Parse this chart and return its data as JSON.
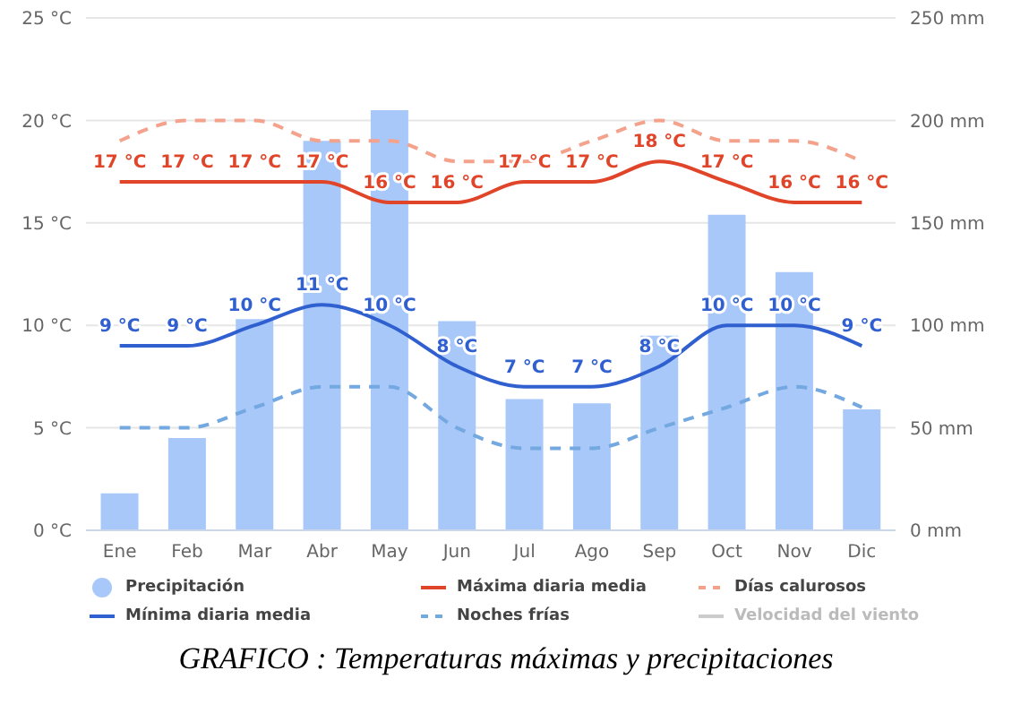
{
  "chart_data": {
    "type": "bar",
    "title": "GRAFICO : Temperaturas máximas y precipitaciones",
    "categories": [
      "Ene",
      "Feb",
      "Mar",
      "Abr",
      "May",
      "Jun",
      "Jul",
      "Ago",
      "Sep",
      "Oct",
      "Nov",
      "Dic"
    ],
    "series": [
      {
        "name": "Precipitación",
        "axis": "y2",
        "color": "#a8c8fa",
        "values": [
          18,
          45,
          103,
          190,
          205,
          102,
          64,
          62,
          95,
          154,
          126,
          59
        ]
      },
      {
        "name": "Máxima diaria media",
        "type": "line",
        "color": "#e0452a",
        "line_style": "solid",
        "values": [
          17,
          17,
          17,
          17,
          16,
          16,
          17,
          17,
          18,
          17,
          16,
          16
        ],
        "value_labels": [
          "17 °C",
          "17 °C",
          "17 °C",
          "17 °C",
          "16 °C",
          "16 °C",
          "17 °C",
          "17 °C",
          "18 °C",
          "17 °C",
          "16 °C",
          "16 °C"
        ]
      },
      {
        "name": "Días calurosos",
        "type": "line",
        "color": "#f4a28c",
        "line_style": "dashed",
        "values": [
          19,
          20,
          20,
          19,
          19,
          18,
          18,
          19,
          20,
          19,
          19,
          18
        ]
      },
      {
        "name": "Mínima diaria media",
        "type": "line",
        "color": "#3060d0",
        "line_style": "solid",
        "values": [
          9,
          9,
          10,
          11,
          10,
          8,
          7,
          7,
          8,
          10,
          10,
          9
        ],
        "value_labels": [
          "9 °C",
          "9 °C",
          "10 °C",
          "11 °C",
          "10 °C",
          "8 °C",
          "7 °C",
          "7 °C",
          "8 °C",
          "10 °C",
          "10 °C",
          "9 °C"
        ]
      },
      {
        "name": "Noches frías",
        "type": "line",
        "color": "#74a8e0",
        "line_style": "dashed",
        "values": [
          5,
          5,
          6,
          7,
          7,
          5,
          4,
          4,
          5,
          6,
          7,
          6
        ]
      },
      {
        "name": "Velocidad del viento",
        "type": "line",
        "color": "#cccccc",
        "line_style": "solid",
        "values": [
          null,
          null,
          null,
          null,
          null,
          null,
          null,
          null,
          null,
          null,
          null,
          null
        ]
      }
    ],
    "ylim": [
      0,
      25
    ],
    "yticks": [
      {
        "value": 0,
        "label": "0 °C"
      },
      {
        "value": 5,
        "label": "5 °C"
      },
      {
        "value": 10,
        "label": "10 °C"
      },
      {
        "value": 15,
        "label": "15 °C"
      },
      {
        "value": 20,
        "label": "20 °C"
      },
      {
        "value": 25,
        "label": "25 °C"
      }
    ],
    "y2lim": [
      0,
      250
    ],
    "y2ticks": [
      {
        "value": 0,
        "label": "0 mm"
      },
      {
        "value": 50,
        "label": "50 mm"
      },
      {
        "value": 100,
        "label": "100 mm"
      },
      {
        "value": 150,
        "label": "150 mm"
      },
      {
        "value": 200,
        "label": "200 mm"
      },
      {
        "value": 250,
        "label": "250 mm"
      }
    ],
    "grid": "y",
    "legend": "bottom",
    "marker": "none"
  }
}
